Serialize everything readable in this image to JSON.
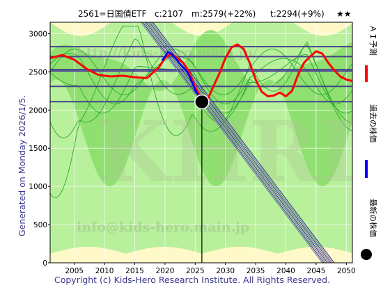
{
  "header": {
    "title": "2561=日国債ETF",
    "current": "c:2107",
    "mid": "m:2579(+22%)",
    "target": "t:2294(+9%)",
    "stars": "★★"
  },
  "side_label": "Generated on Monday 2026/1/5.",
  "copyright": "Copyright (c) Kids-Hero Research Institute. All Rights Reserved.",
  "watermarks": {
    "url": "http://kids-hero.main.jp/",
    "big": "KHRI",
    "email": "info@kids-hero.main.jp"
  },
  "legend": [
    {
      "label": "ＡＩ予測",
      "color": "#ff0000"
    },
    {
      "label": "過去の株価",
      "color": "#0000ff"
    },
    {
      "label": "最新の株価",
      "color": "#000000"
    }
  ],
  "chart_data": {
    "type": "line",
    "xlim": [
      2001,
      2051
    ],
    "ylim": [
      0,
      3150
    ],
    "x_ticks": [
      2005,
      2010,
      2015,
      2020,
      2025,
      2030,
      2035,
      2040,
      2045,
      2050
    ],
    "y_ticks": [
      0,
      500,
      1000,
      1500,
      2000,
      2500,
      3000
    ],
    "grid": true,
    "latest_point": {
      "x": 2026.1,
      "y": 2107
    },
    "horizontal_levels": [
      2830,
      2700,
      2530,
      2510,
      2310,
      2110
    ],
    "trend_band": {
      "start": [
        2017,
        3150
      ],
      "end": [
        2047,
        0
      ],
      "lines": 8
    },
    "series": [
      {
        "color": "#ff0000",
        "x": [
          2001,
          2003,
          2005,
          2007,
          2009,
          2011,
          2013,
          2015,
          2017,
          2019,
          2020,
          2021,
          2022,
          2023,
          2024,
          2025,
          2026,
          2027,
          2028,
          2029,
          2030,
          2031,
          2032,
          2033,
          2034,
          2035,
          2036,
          2037,
          2038,
          2039,
          2040,
          2041,
          2042,
          2043,
          2044,
          2045,
          2046,
          2047,
          2048,
          2049,
          2050,
          2051
        ],
        "y": [
          2680,
          2720,
          2660,
          2540,
          2460,
          2440,
          2450,
          2430,
          2420,
          2560,
          2680,
          2740,
          2680,
          2620,
          2500,
          2300,
          2160,
          2130,
          2310,
          2480,
          2680,
          2820,
          2860,
          2800,
          2620,
          2400,
          2240,
          2180,
          2190,
          2230,
          2180,
          2250,
          2460,
          2620,
          2700,
          2770,
          2740,
          2620,
          2520,
          2440,
          2400,
          2380
        ]
      },
      {
        "color": "#0000ff",
        "x": [
          2019.5,
          2020,
          2020.5,
          2021,
          2021.5,
          2022,
          2022.5,
          2023,
          2023.5,
          2024,
          2024.5,
          2025,
          2025.5
        ],
        "y": [
          2650,
          2700,
          2760,
          2740,
          2700,
          2650,
          2600,
          2560,
          2520,
          2450,
          2360,
          2260,
          2200
        ]
      }
    ]
  }
}
